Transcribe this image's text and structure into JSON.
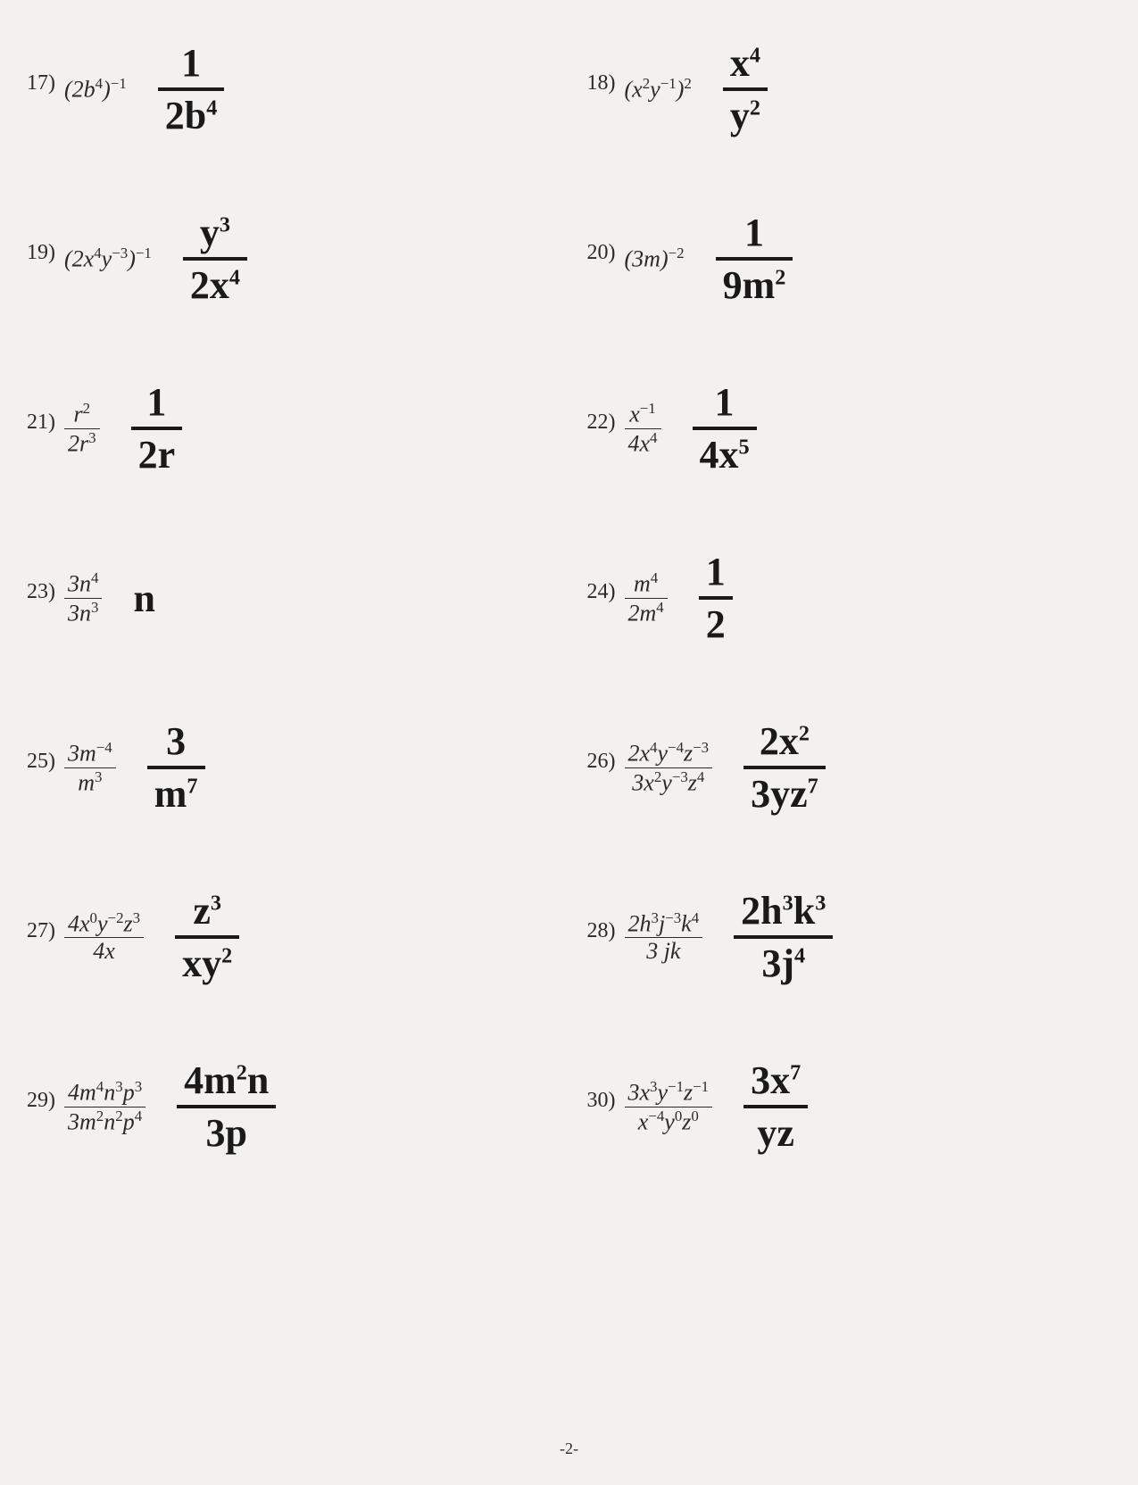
{
  "page_number": "-2-",
  "background_color": "#f2f1ef",
  "text_color": "#2a2a2a",
  "handwriting_color": "#1a1a1a",
  "problems": [
    {
      "n": "17)",
      "printed_html": "(2<i>b</i><sup>4</sup>)<sup>−1</sup>",
      "ans_top": "1",
      "ans_bot": "2b<sup>4</sup>"
    },
    {
      "n": "18)",
      "printed_html": "(<i>x</i><sup>2</sup><i>y</i><sup>−1</sup>)<sup>2</sup>",
      "ans_top": "x<sup>4</sup>",
      "ans_bot": "y<sup>2</sup>"
    },
    {
      "n": "19)",
      "printed_html": "(2<i>x</i><sup>4</sup><i>y</i><sup>−3</sup>)<sup>−1</sup>",
      "ans_top": "y<sup>3</sup>",
      "ans_bot": "2x<sup>4</sup>"
    },
    {
      "n": "20)",
      "printed_html": "(3<i>m</i>)<sup>−2</sup>",
      "ans_top": "1",
      "ans_bot": "9m<sup>2</sup>"
    },
    {
      "n": "21)",
      "printed_frac_top": "<i>r</i><sup>2</sup>",
      "printed_frac_bot": "2<i>r</i><sup>3</sup>",
      "ans_top": "1",
      "ans_bot": "2r"
    },
    {
      "n": "22)",
      "printed_frac_top": "<i>x</i><sup>−1</sup>",
      "printed_frac_bot": "4<i>x</i><sup>4</sup>",
      "ans_top": "1",
      "ans_bot": "4x<sup>5</sup>"
    },
    {
      "n": "23)",
      "printed_frac_top": "3<i>n</i><sup>4</sup>",
      "printed_frac_bot": "3<i>n</i><sup>3</sup>",
      "ans_inline": "n"
    },
    {
      "n": "24)",
      "printed_frac_top": "<i>m</i><sup>4</sup>",
      "printed_frac_bot": "2<i>m</i><sup>4</sup>",
      "ans_top": "1",
      "ans_bot": "2"
    },
    {
      "n": "25)",
      "printed_frac_top": "3<i>m</i><sup>−4</sup>",
      "printed_frac_bot": "<i>m</i><sup>3</sup>",
      "ans_top": "3",
      "ans_bot": "m<sup>7</sup>"
    },
    {
      "n": "26)",
      "printed_frac_top": "2<i>x</i><sup>4</sup><i>y</i><sup>−4</sup><i>z</i><sup>−3</sup>",
      "printed_frac_bot": "3<i>x</i><sup>2</sup><i>y</i><sup>−3</sup><i>z</i><sup>4</sup>",
      "ans_top": "2x<sup>2</sup>",
      "ans_bot": "3yz<sup>7</sup>"
    },
    {
      "n": "27)",
      "printed_frac_top": "4<i>x</i><sup>0</sup><i>y</i><sup>−2</sup><i>z</i><sup>3</sup>",
      "printed_frac_bot": "4<i>x</i>",
      "ans_top": "z<sup>3</sup>",
      "ans_bot": "xy<sup>2</sup>"
    },
    {
      "n": "28)",
      "printed_frac_top": "2<i>h</i><sup>3</sup><i>j</i><sup>−3</sup><i>k</i><sup>4</sup>",
      "printed_frac_bot": "3&nbsp;<i>jk</i>",
      "ans_top": "2h<sup>3</sup>k<sup>3</sup>",
      "ans_bot": "3j<sup>4</sup>"
    },
    {
      "n": "29)",
      "printed_frac_top": "4<i>m</i><sup>4</sup><i>n</i><sup>3</sup><i>p</i><sup>3</sup>",
      "printed_frac_bot": "3<i>m</i><sup>2</sup><i>n</i><sup>2</sup><i>p</i><sup>4</sup>",
      "ans_top": "4m<sup>2</sup>n",
      "ans_bot": "3p"
    },
    {
      "n": "30)",
      "printed_frac_top": "3<i>x</i><sup>3</sup><i>y</i><sup>−1</sup><i>z</i><sup>−1</sup>",
      "printed_frac_bot": "<i>x</i><sup>−4</sup><i>y</i><sup>0</sup><i>z</i><sup>0</sup>",
      "ans_top": "3x<sup>7</sup>",
      "ans_bot": "yz"
    }
  ]
}
